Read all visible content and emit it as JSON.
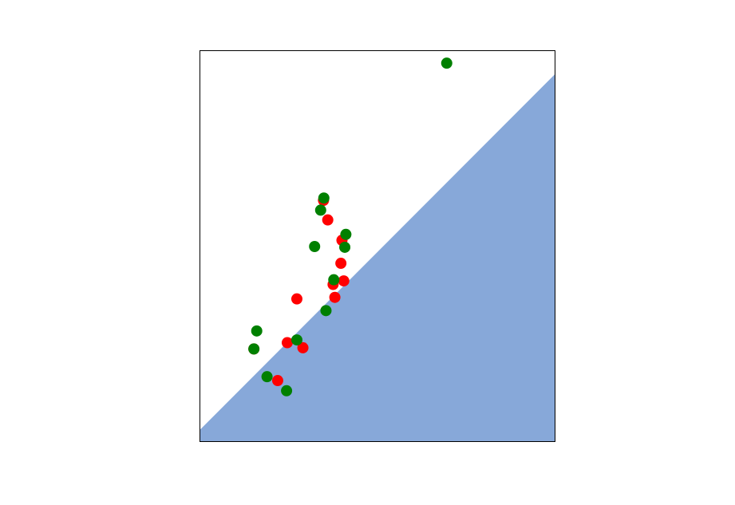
{
  "chart_data": {
    "type": "scatter",
    "title": "",
    "xlabel": "",
    "ylabel": "",
    "xlim": [
      0,
      100
    ],
    "ylim": [
      0,
      100
    ],
    "grid": false,
    "axes_ticks": false,
    "region": {
      "name": "",
      "color": "#87a8d9",
      "boundary_line": [
        [
          0,
          3
        ],
        [
          100,
          94
        ]
      ],
      "fill_side": "below"
    },
    "series": [
      {
        "color": "#ff0000",
        "points": [
          [
            34.8,
            61.7
          ],
          [
            36.0,
            56.7
          ],
          [
            40.0,
            51.5
          ],
          [
            39.7,
            45.6
          ],
          [
            37.5,
            40.2
          ],
          [
            40.5,
            41.1
          ],
          [
            38.0,
            36.9
          ],
          [
            27.3,
            36.5
          ],
          [
            24.6,
            25.3
          ],
          [
            29.0,
            24.0
          ],
          [
            21.9,
            15.6
          ],
          [
            15.2,
            23.7
          ]
        ]
      },
      {
        "color": "#008000",
        "points": [
          [
            69.5,
            96.8
          ],
          [
            34.9,
            62.3
          ],
          [
            34.0,
            59.2
          ],
          [
            41.1,
            53.0
          ],
          [
            40.8,
            49.7
          ],
          [
            32.3,
            49.9
          ],
          [
            37.7,
            41.4
          ],
          [
            35.5,
            33.5
          ],
          [
            16.0,
            28.3
          ],
          [
            27.3,
            26.0
          ],
          [
            15.2,
            23.7
          ],
          [
            18.9,
            16.6
          ],
          [
            24.4,
            13.0
          ]
        ]
      }
    ]
  }
}
